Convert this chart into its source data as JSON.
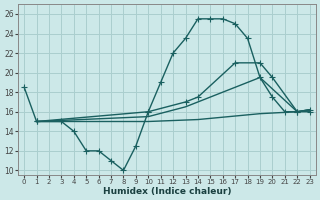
{
  "bg_color": "#cce8e8",
  "grid_color": "#aacece",
  "line_color": "#1a6060",
  "xlabel": "Humidex (Indice chaleur)",
  "xlim": [
    -0.5,
    23.5
  ],
  "ylim": [
    9.5,
    27.0
  ],
  "xticks": [
    0,
    1,
    2,
    3,
    4,
    5,
    6,
    7,
    8,
    9,
    10,
    11,
    12,
    13,
    14,
    15,
    16,
    17,
    18,
    19,
    20,
    21,
    22,
    23
  ],
  "yticks": [
    10,
    12,
    14,
    16,
    18,
    20,
    22,
    24,
    26
  ],
  "line_main_x": [
    0,
    1,
    3,
    4,
    5,
    6,
    7,
    8,
    9,
    10,
    11,
    12,
    13,
    14,
    15,
    16,
    17,
    18,
    19,
    20,
    21,
    22,
    23
  ],
  "line_main_y": [
    18.5,
    15,
    15,
    14,
    12,
    12,
    11,
    10,
    12.5,
    16,
    19,
    22,
    23.5,
    25.5,
    25.5,
    25.5,
    25.0,
    23.5,
    19.5,
    17.5,
    16.0,
    16.0,
    16.0
  ],
  "line_upper_x": [
    1,
    10,
    13,
    14,
    17,
    19,
    20,
    22,
    23
  ],
  "line_upper_y": [
    15,
    16,
    17,
    17.5,
    21,
    21,
    19.5,
    16,
    16.2
  ],
  "line_mid_x": [
    1,
    10,
    13,
    14,
    17,
    19,
    22,
    23
  ],
  "line_mid_y": [
    15,
    15.5,
    16.5,
    17,
    18.5,
    19.5,
    16,
    16.2
  ],
  "line_low_x": [
    1,
    10,
    14,
    19,
    22,
    23
  ],
  "line_low_y": [
    15,
    15.0,
    15.2,
    15.8,
    16.0,
    16.2
  ]
}
